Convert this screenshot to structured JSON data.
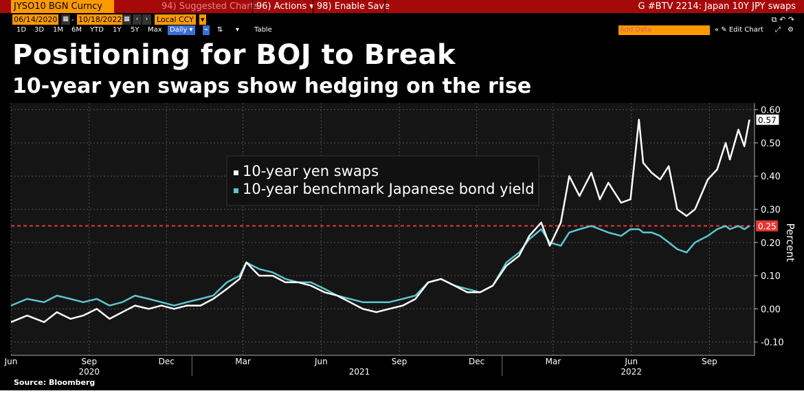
{
  "toolbar": {
    "ticker": "JYSO10 BGN Curncy",
    "suggested": "94) Suggested Charts",
    "actions": "96) Actions ▾",
    "enable_save": "98) Enable Save",
    "title": "G #BTV 2214: Japan 10Y JPY swaps",
    "start_date": "06/14/2020",
    "end_date": "10/18/2022",
    "currency": "Local CCY",
    "periods": [
      "1D",
      "3D",
      "1M",
      "6M",
      "YTD",
      "1Y",
      "5Y",
      "Max"
    ],
    "frequency": "Daily ▾",
    "table": "Table",
    "add_data": "Add Data",
    "edit_chart": "« ✎ Edit Chart"
  },
  "headline": "Positioning for BOJ to Break",
  "subheadline": "10-year yen swaps show hedging on the rise",
  "source": "Source: Bloomberg",
  "colors": {
    "swaps": "#ffffff",
    "jgb": "#5bc8cf",
    "cap": "#e53935",
    "bar": "#a5090a",
    "ticker_bg": "#ff9900"
  },
  "chart_data": {
    "type": "line",
    "ylabel": "Percent",
    "ylim": [
      -0.14,
      0.62
    ],
    "yticks": [
      -0.1,
      0.0,
      0.1,
      0.2,
      0.3,
      0.4,
      0.5,
      0.6
    ],
    "ytick_labels": [
      "-0.10",
      "0.00",
      "0.10",
      "0.20",
      "0.30",
      "0.40",
      "0.50",
      "0.60"
    ],
    "xlim": [
      "2020-06-01",
      "2022-10-24"
    ],
    "xticks": [
      {
        "date": "2020-06-01",
        "label": "Jun"
      },
      {
        "date": "2020-09-01",
        "label": "Sep"
      },
      {
        "date": "2020-12-01",
        "label": "Dec"
      },
      {
        "date": "2021-03-01",
        "label": "Mar"
      },
      {
        "date": "2021-06-01",
        "label": "Jun"
      },
      {
        "date": "2021-09-01",
        "label": "Sep"
      },
      {
        "date": "2021-12-01",
        "label": "Dec"
      },
      {
        "date": "2022-03-01",
        "label": "Mar"
      },
      {
        "date": "2022-06-01",
        "label": "Jun"
      },
      {
        "date": "2022-09-01",
        "label": "Sep"
      }
    ],
    "years": [
      {
        "date": "2020-09-01",
        "label": "2020"
      },
      {
        "date": "2021-07-16",
        "label": "2021"
      },
      {
        "date": "2022-06-01",
        "label": "2022"
      }
    ],
    "reference_line": {
      "value": 0.25,
      "label": "0.25"
    },
    "last_value_label": "0.57",
    "legend": [
      "10-year yen swaps",
      "10-year benchmark Japanese bond yield"
    ],
    "legend_position": "upper-center",
    "grid": true,
    "series": [
      {
        "name": "10-year yen swaps",
        "x": [
          "2020-06-01",
          "2020-06-20",
          "2020-07-10",
          "2020-07-25",
          "2020-08-10",
          "2020-08-25",
          "2020-09-10",
          "2020-09-25",
          "2020-10-10",
          "2020-10-25",
          "2020-11-10",
          "2020-11-25",
          "2020-12-10",
          "2020-12-25",
          "2021-01-10",
          "2021-01-25",
          "2021-02-10",
          "2021-02-25",
          "2021-03-05",
          "2021-03-20",
          "2021-04-05",
          "2021-04-20",
          "2021-05-05",
          "2021-05-20",
          "2021-06-05",
          "2021-06-20",
          "2021-07-05",
          "2021-07-20",
          "2021-08-05",
          "2021-08-20",
          "2021-09-05",
          "2021-09-20",
          "2021-10-05",
          "2021-10-20",
          "2021-11-05",
          "2021-11-20",
          "2021-12-05",
          "2021-12-20",
          "2022-01-05",
          "2022-01-20",
          "2022-02-01",
          "2022-02-15",
          "2022-02-25",
          "2022-03-10",
          "2022-03-20",
          "2022-04-01",
          "2022-04-15",
          "2022-04-25",
          "2022-05-05",
          "2022-05-20",
          "2022-05-31",
          "2022-06-10",
          "2022-06-15",
          "2022-06-25",
          "2022-07-05",
          "2022-07-15",
          "2022-07-25",
          "2022-08-05",
          "2022-08-15",
          "2022-08-30",
          "2022-09-10",
          "2022-09-20",
          "2022-09-25",
          "2022-10-05",
          "2022-10-12",
          "2022-10-18"
        ],
        "values": [
          -0.04,
          -0.02,
          -0.04,
          -0.01,
          -0.03,
          -0.02,
          0.0,
          -0.03,
          -0.01,
          0.01,
          0.0,
          0.01,
          0.0,
          0.01,
          0.01,
          0.03,
          0.06,
          0.09,
          0.14,
          0.1,
          0.1,
          0.08,
          0.08,
          0.07,
          0.05,
          0.04,
          0.02,
          0.0,
          -0.01,
          0.0,
          0.01,
          0.03,
          0.08,
          0.09,
          0.07,
          0.05,
          0.05,
          0.07,
          0.13,
          0.16,
          0.22,
          0.26,
          0.19,
          0.26,
          0.4,
          0.34,
          0.41,
          0.33,
          0.38,
          0.32,
          0.33,
          0.57,
          0.44,
          0.41,
          0.39,
          0.43,
          0.3,
          0.28,
          0.3,
          0.39,
          0.42,
          0.5,
          0.45,
          0.54,
          0.49,
          0.57
        ]
      },
      {
        "name": "10-year benchmark Japanese bond yield",
        "x": [
          "2020-06-01",
          "2020-06-20",
          "2020-07-10",
          "2020-07-25",
          "2020-08-10",
          "2020-08-25",
          "2020-09-10",
          "2020-09-25",
          "2020-10-10",
          "2020-10-25",
          "2020-11-10",
          "2020-11-25",
          "2020-12-10",
          "2020-12-25",
          "2021-01-10",
          "2021-01-25",
          "2021-02-10",
          "2021-02-25",
          "2021-03-05",
          "2021-03-20",
          "2021-04-05",
          "2021-04-20",
          "2021-05-05",
          "2021-05-20",
          "2021-06-05",
          "2021-06-20",
          "2021-07-05",
          "2021-07-20",
          "2021-08-05",
          "2021-08-20",
          "2021-09-05",
          "2021-09-20",
          "2021-10-05",
          "2021-10-20",
          "2021-11-05",
          "2021-11-20",
          "2021-12-05",
          "2021-12-20",
          "2022-01-05",
          "2022-01-20",
          "2022-02-01",
          "2022-02-15",
          "2022-02-25",
          "2022-03-10",
          "2022-03-20",
          "2022-04-01",
          "2022-04-15",
          "2022-04-25",
          "2022-05-05",
          "2022-05-20",
          "2022-05-31",
          "2022-06-10",
          "2022-06-15",
          "2022-06-25",
          "2022-07-05",
          "2022-07-15",
          "2022-07-25",
          "2022-08-05",
          "2022-08-15",
          "2022-08-30",
          "2022-09-10",
          "2022-09-20",
          "2022-09-25",
          "2022-10-05",
          "2022-10-12",
          "2022-10-18"
        ],
        "values": [
          0.01,
          0.03,
          0.02,
          0.04,
          0.03,
          0.02,
          0.03,
          0.01,
          0.02,
          0.04,
          0.03,
          0.02,
          0.01,
          0.02,
          0.03,
          0.04,
          0.08,
          0.1,
          0.14,
          0.12,
          0.11,
          0.09,
          0.08,
          0.08,
          0.06,
          0.04,
          0.03,
          0.02,
          0.02,
          0.02,
          0.03,
          0.04,
          0.08,
          0.09,
          0.07,
          0.06,
          0.05,
          0.07,
          0.14,
          0.17,
          0.21,
          0.24,
          0.2,
          0.19,
          0.23,
          0.24,
          0.25,
          0.24,
          0.23,
          0.22,
          0.24,
          0.24,
          0.23,
          0.23,
          0.22,
          0.2,
          0.18,
          0.17,
          0.2,
          0.22,
          0.24,
          0.25,
          0.24,
          0.25,
          0.24,
          0.25
        ]
      }
    ]
  }
}
